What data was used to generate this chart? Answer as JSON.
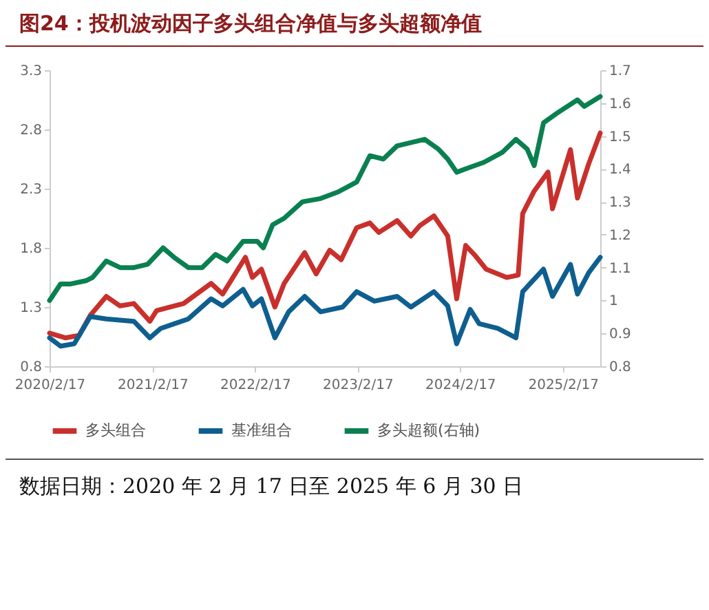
{
  "chart_data": {
    "type": "line",
    "title": "图24：投机波动因子多头组合净值与多头超额净值",
    "annotations": [
      "数据日期：2020 年 2 月 17 日至 2025 年 6 月 30 日"
    ],
    "xlim": [
      "2020-02-17",
      "2025-06-30"
    ],
    "xticks": [
      {
        "value": "2020-02-17",
        "label": "2020/2/17"
      },
      {
        "value": "2021-02-17",
        "label": "2021/2/17"
      },
      {
        "value": "2022-02-17",
        "label": "2022/2/17"
      },
      {
        "value": "2023-02-17",
        "label": "2023/2/17"
      },
      {
        "value": "2024-02-17",
        "label": "2024/2/17"
      },
      {
        "value": "2025-02-17",
        "label": "2025/2/17"
      }
    ],
    "ylim": [
      0.8,
      3.3
    ],
    "yticks": [
      0.8,
      1.3,
      1.8,
      2.3,
      2.8,
      3.3
    ],
    "y2lim": [
      0.8,
      1.7
    ],
    "y2ticks": [
      0.8,
      0.9,
      1,
      1.1,
      1.2,
      1.3,
      1.4,
      1.5,
      1.6,
      1.7
    ],
    "grid": false,
    "legend": "bottom",
    "marker": "none",
    "line_style": "solid",
    "series": [
      {
        "name": "多头组合",
        "color": "#c9302c",
        "x": [
          "2020-02-17",
          "2020-04-13",
          "2020-06-01",
          "2020-07-11",
          "2020-09-06",
          "2020-10-25",
          "2020-12-13",
          "2021-02-08",
          "2021-03-04",
          "2021-06-08",
          "2021-09-14",
          "2021-10-25",
          "2022-01-14",
          "2022-02-08",
          "2022-03-12",
          "2022-04-29",
          "2022-06-01",
          "2022-08-13",
          "2022-09-23",
          "2022-11-10",
          "2022-12-21",
          "2023-02-14",
          "2023-04-02",
          "2023-05-04",
          "2023-07-08",
          "2023-08-26",
          "2023-09-28",
          "2023-11-16",
          "2024-01-04",
          "2024-02-05",
          "2024-03-08",
          "2024-04-09",
          "2024-05-20",
          "2024-08-01",
          "2024-09-11",
          "2024-09-27",
          "2024-11-07",
          "2024-12-26",
          "2025-01-11",
          "2025-03-16",
          "2025-04-10",
          "2025-05-20",
          "2025-06-30"
        ],
        "values": [
          1.08,
          1.04,
          1.06,
          1.23,
          1.39,
          1.31,
          1.33,
          1.18,
          1.27,
          1.33,
          1.5,
          1.41,
          1.72,
          1.55,
          1.62,
          1.3,
          1.5,
          1.76,
          1.58,
          1.78,
          1.7,
          1.97,
          2.01,
          1.93,
          2.03,
          1.9,
          1.99,
          2.07,
          1.9,
          1.37,
          1.82,
          1.74,
          1.62,
          1.55,
          1.57,
          2.09,
          2.28,
          2.44,
          2.13,
          2.63,
          2.22,
          2.51,
          2.77
        ]
      },
      {
        "name": "基准组合",
        "color": "#0e5f8f",
        "x": [
          "2020-02-17",
          "2020-03-27",
          "2020-05-15",
          "2020-07-11",
          "2020-09-06",
          "2020-12-13",
          "2021-02-08",
          "2021-03-19",
          "2021-06-25",
          "2021-09-14",
          "2021-10-25",
          "2022-01-06",
          "2022-02-08",
          "2022-03-12",
          "2022-04-29",
          "2022-06-17",
          "2022-08-13",
          "2022-10-09",
          "2022-12-26",
          "2023-02-14",
          "2023-04-18",
          "2023-07-08",
          "2023-08-26",
          "2023-11-16",
          "2024-01-04",
          "2024-02-05",
          "2024-03-24",
          "2024-04-25",
          "2024-06-30",
          "2024-09-03",
          "2024-09-27",
          "2024-12-10",
          "2025-01-11",
          "2025-03-16",
          "2025-04-10",
          "2025-05-20",
          "2025-06-30"
        ],
        "values": [
          1.04,
          0.97,
          0.99,
          1.22,
          1.2,
          1.18,
          1.04,
          1.12,
          1.2,
          1.37,
          1.31,
          1.45,
          1.31,
          1.37,
          1.04,
          1.26,
          1.39,
          1.26,
          1.3,
          1.43,
          1.35,
          1.39,
          1.3,
          1.43,
          1.31,
          0.99,
          1.28,
          1.16,
          1.12,
          1.04,
          1.43,
          1.62,
          1.39,
          1.66,
          1.41,
          1.59,
          1.72
        ]
      },
      {
        "name": "多头超额(右轴)",
        "color": "#0a8050",
        "axis": "y2",
        "x": [
          "2020-02-17",
          "2020-03-27",
          "2020-04-29",
          "2020-06-25",
          "2020-07-19",
          "2020-09-06",
          "2020-10-25",
          "2020-12-13",
          "2021-01-31",
          "2021-03-27",
          "2021-05-07",
          "2021-06-25",
          "2021-08-13",
          "2021-09-30",
          "2021-11-10",
          "2022-01-06",
          "2022-02-25",
          "2022-03-19",
          "2022-04-21",
          "2022-06-01",
          "2022-08-05",
          "2022-10-09",
          "2022-12-10",
          "2023-02-14",
          "2023-04-02",
          "2023-05-20",
          "2023-07-08",
          "2023-10-14",
          "2023-12-02",
          "2024-01-04",
          "2024-02-05",
          "2024-03-08",
          "2024-05-12",
          "2024-07-16",
          "2024-09-03",
          "2024-10-13",
          "2024-11-07",
          "2024-12-10",
          "2025-01-28",
          "2025-04-10",
          "2025-05-04",
          "2025-06-30"
        ],
        "values": [
          1.0,
          1.05,
          1.05,
          1.06,
          1.07,
          1.12,
          1.1,
          1.1,
          1.11,
          1.16,
          1.13,
          1.1,
          1.1,
          1.14,
          1.12,
          1.18,
          1.18,
          1.16,
          1.23,
          1.25,
          1.3,
          1.31,
          1.33,
          1.36,
          1.44,
          1.43,
          1.47,
          1.49,
          1.46,
          1.43,
          1.39,
          1.4,
          1.42,
          1.45,
          1.49,
          1.46,
          1.41,
          1.54,
          1.57,
          1.61,
          1.59,
          1.62
        ]
      }
    ]
  }
}
